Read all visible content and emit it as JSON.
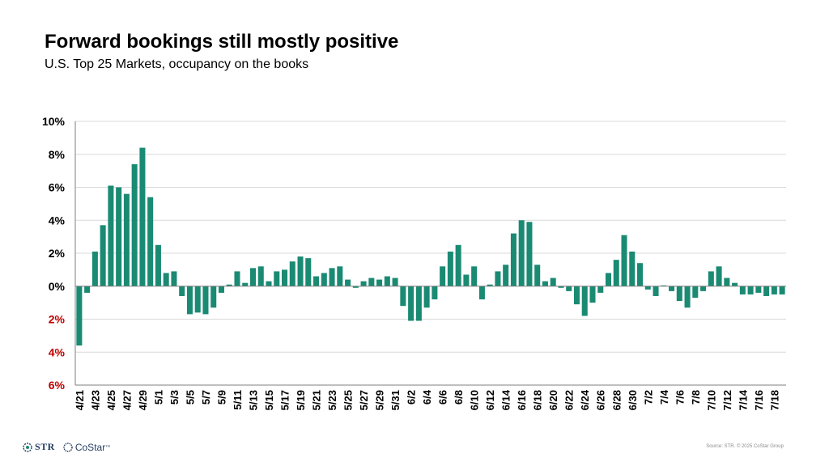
{
  "header": {
    "title": "Forward bookings still mostly positive",
    "subtitle": "U.S. Top 25 Markets, occupancy on the books"
  },
  "footer": {
    "str_label": "STR",
    "costar_label": "CoStar",
    "costar_tm": "™",
    "source": "Source: STR. © 2025 CoStar Group"
  },
  "colors": {
    "bar": "#1a8a73",
    "negative_tick": "#c00000",
    "grid": "#d9d9d9"
  },
  "chart_data": {
    "type": "bar",
    "title": "Forward bookings still mostly positive",
    "subtitle": "U.S. Top 25 Markets, occupancy on the books",
    "xlabel": "",
    "ylabel": "",
    "ylim": [
      -6,
      10
    ],
    "grid": true,
    "legend": "none",
    "y_ticks": [
      {
        "value": 10,
        "label": "10%",
        "negative": false
      },
      {
        "value": 8,
        "label": "8%",
        "negative": false
      },
      {
        "value": 6,
        "label": "6%",
        "negative": false
      },
      {
        "value": 4,
        "label": "4%",
        "negative": false
      },
      {
        "value": 2,
        "label": "2%",
        "negative": false
      },
      {
        "value": 0,
        "label": "0%",
        "negative": false
      },
      {
        "value": -2,
        "label": "2%",
        "negative": true
      },
      {
        "value": -4,
        "label": "4%",
        "negative": true
      },
      {
        "value": -6,
        "label": "6%",
        "negative": true
      }
    ],
    "categories": [
      "4/21",
      "4/22",
      "4/23",
      "4/24",
      "4/25",
      "4/26",
      "4/27",
      "4/28",
      "4/29",
      "4/30",
      "5/1",
      "5/2",
      "5/3",
      "5/4",
      "5/5",
      "5/6",
      "5/7",
      "5/8",
      "5/9",
      "5/10",
      "5/11",
      "5/12",
      "5/13",
      "5/14",
      "5/15",
      "5/16",
      "5/17",
      "5/18",
      "5/19",
      "5/20",
      "5/21",
      "5/22",
      "5/23",
      "5/24",
      "5/25",
      "5/26",
      "5/27",
      "5/28",
      "5/29",
      "5/30",
      "5/31",
      "6/1",
      "6/2",
      "6/3",
      "6/4",
      "6/5",
      "6/6",
      "6/7",
      "6/8",
      "6/9",
      "6/10",
      "6/11",
      "6/12",
      "6/13",
      "6/14",
      "6/15",
      "6/16",
      "6/17",
      "6/18",
      "6/19",
      "6/20",
      "6/21",
      "6/22",
      "6/23",
      "6/24",
      "6/25",
      "6/26",
      "6/27",
      "6/28",
      "6/29",
      "6/30",
      "7/1",
      "7/2",
      "7/3",
      "7/4",
      "7/5",
      "7/6",
      "7/7",
      "7/8",
      "7/9",
      "7/10",
      "7/11",
      "7/12",
      "7/13",
      "7/14",
      "7/15",
      "7/16",
      "7/17",
      "7/18",
      "7/19"
    ],
    "x_tick_labels": [
      "4/21",
      "4/23",
      "4/25",
      "4/27",
      "4/29",
      "5/1",
      "5/3",
      "5/5",
      "5/7",
      "5/9",
      "5/11",
      "5/13",
      "5/15",
      "5/17",
      "5/19",
      "5/21",
      "5/23",
      "5/25",
      "5/27",
      "5/29",
      "5/31",
      "6/2",
      "6/4",
      "6/6",
      "6/8",
      "6/10",
      "6/12",
      "6/14",
      "6/16",
      "6/18",
      "6/20",
      "6/22",
      "6/24",
      "6/26",
      "6/28",
      "6/30",
      "7/2",
      "7/4",
      "7/6",
      "7/8",
      "7/10",
      "7/12",
      "7/14",
      "7/16",
      "7/18"
    ],
    "values": [
      -3.6,
      -0.4,
      2.1,
      3.7,
      6.1,
      6.0,
      5.6,
      7.4,
      8.4,
      5.4,
      2.5,
      0.8,
      0.9,
      -0.6,
      -1.7,
      -1.6,
      -1.7,
      -1.3,
      -0.4,
      0.1,
      0.9,
      0.2,
      1.1,
      1.2,
      0.3,
      0.9,
      1.0,
      1.5,
      1.8,
      1.7,
      0.6,
      0.8,
      1.1,
      1.2,
      0.4,
      -0.1,
      0.3,
      0.5,
      0.4,
      0.6,
      0.5,
      -1.2,
      -2.1,
      -2.1,
      -1.3,
      -0.8,
      1.2,
      2.1,
      2.5,
      0.7,
      1.2,
      -0.8,
      0.1,
      0.9,
      1.3,
      3.2,
      4.0,
      3.9,
      1.3,
      0.3,
      0.5,
      -0.1,
      -0.3,
      -1.1,
      -1.8,
      -1.0,
      -0.4,
      0.8,
      1.6,
      3.1,
      2.1,
      1.4,
      -0.2,
      -0.6,
      0.05,
      -0.3,
      -0.9,
      -1.3,
      -0.7,
      -0.3,
      0.9,
      1.2,
      0.5,
      0.2,
      -0.5,
      -0.5,
      -0.4,
      -0.6,
      -0.5,
      -0.5
    ]
  }
}
